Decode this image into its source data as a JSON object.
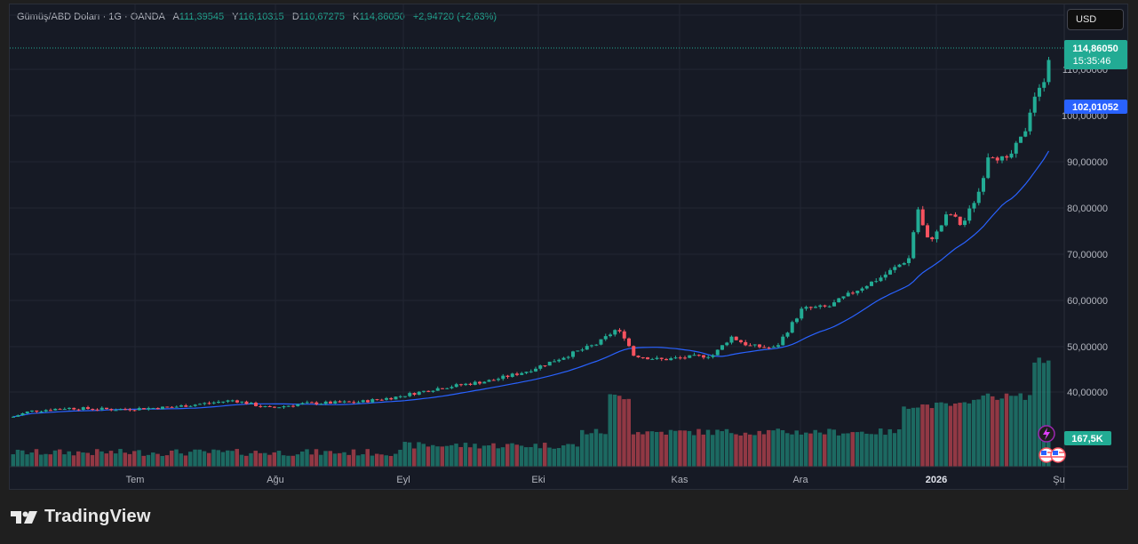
{
  "header": {
    "symbol": "Gümüş/ABD Doları · 1G · OANDA",
    "open_label": "A",
    "open": "111,39545",
    "high_label": "Y",
    "high": "116,10315",
    "low_label": "D",
    "low": "110,67275",
    "close_label": "K",
    "close": "114,86050",
    "change": "+2,94720 (+2,63%)"
  },
  "currency": "USD",
  "price_axis": {
    "ticks": [
      "110,00000",
      "100,00000",
      "90,00000",
      "80,00000",
      "70,00000",
      "60,00000",
      "50,00000",
      "40,00000"
    ]
  },
  "time_axis": {
    "labels": [
      "Tem",
      "Ağu",
      "Eyl",
      "Eki",
      "Kas",
      "Ara",
      "2026",
      "Şu"
    ]
  },
  "badges": {
    "last_price": "114,86050",
    "countdown": "15:35:46",
    "ma_value": "102,01052",
    "volume": "167,5K"
  },
  "colors": {
    "up": "#22ab94",
    "down": "#f7525f",
    "ma": "#2962ff",
    "volume_up": "#22ab94",
    "volume_down": "#f7525f"
  },
  "logo": {
    "text": "TradingView"
  }
}
